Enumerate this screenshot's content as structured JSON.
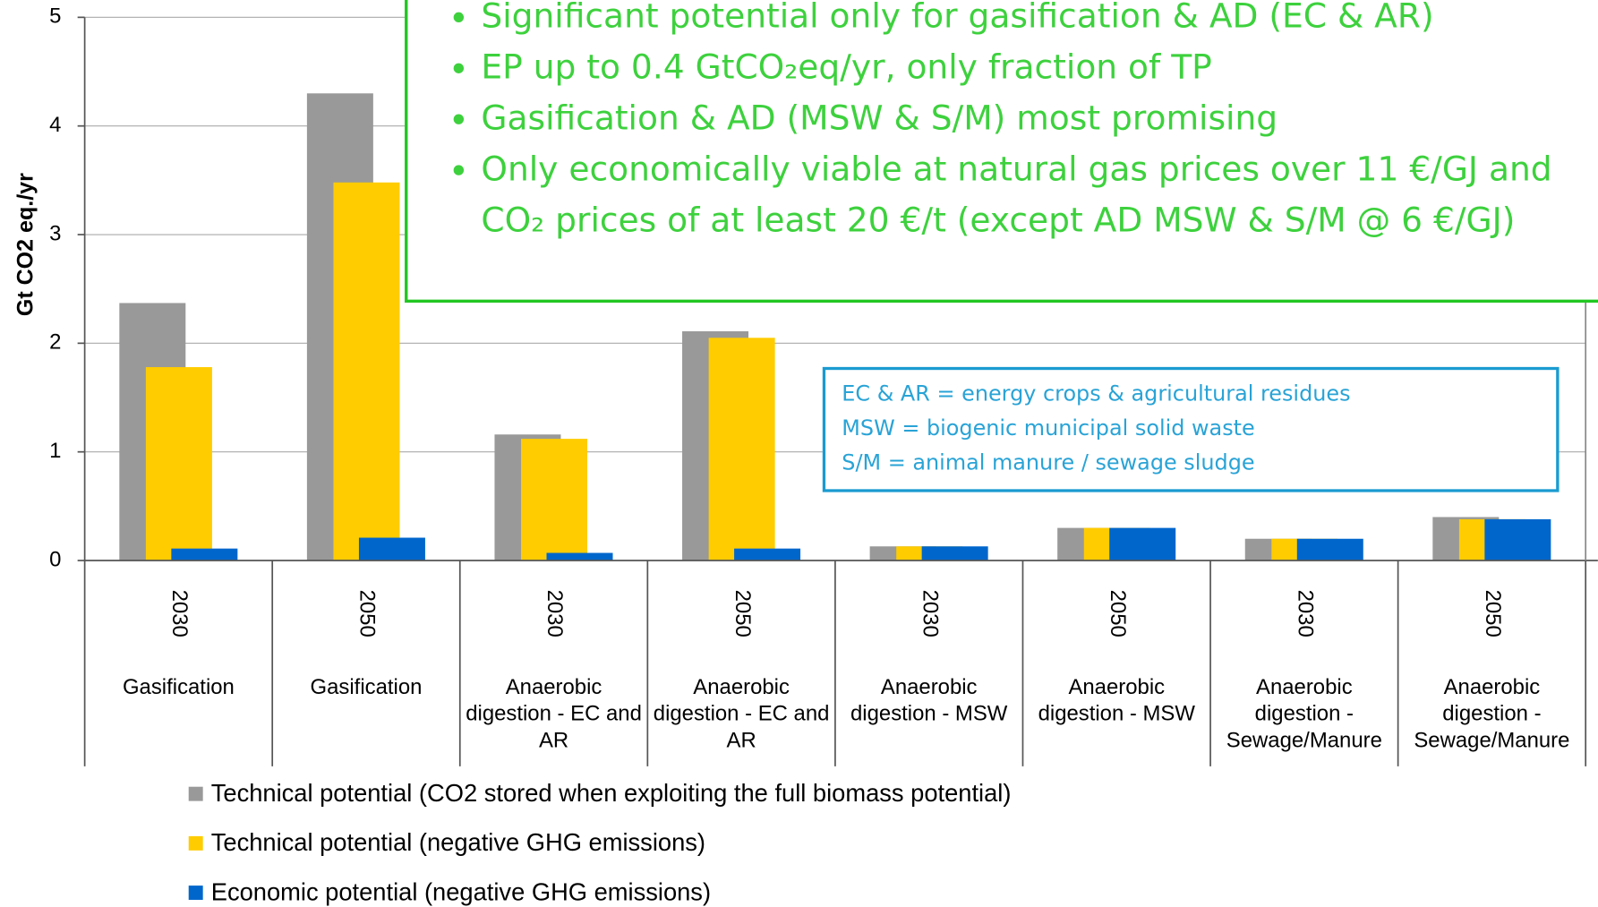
{
  "chart_data": {
    "type": "bar",
    "y_label": "Gt CO2 eq./yr",
    "categories": [
      "2030",
      "2050",
      "2030",
      "2050",
      "2030",
      "2050",
      "2030",
      "2050"
    ],
    "groups": [
      "Gasification",
      "Gasification",
      "Anaerobic digestion - EC and AR",
      "Anaerobic digestion - EC and AR",
      "Anaerobic digestion - MSW",
      "Anaerobic digestion - MSW",
      "Anaerobic digestion - Sewage/Manure",
      "Anaerobic digestion - Sewage/Manure"
    ],
    "series": [
      {
        "name": "Technical potential (CO2 stored when exploiting the full biomass potential)",
        "color": "#999999",
        "values": [
          2.37,
          4.3,
          1.16,
          2.11,
          0.13,
          0.3,
          0.2,
          0.4
        ]
      },
      {
        "name": "Technical potential (negative GHG emissions)",
        "color": "#ffcc00",
        "values": [
          1.78,
          3.48,
          1.12,
          2.05,
          0.13,
          0.3,
          0.2,
          0.38
        ]
      },
      {
        "name": "Economic potential (negative GHG emissions)",
        "color": "#0066cc",
        "values": [
          0.11,
          0.21,
          0.07,
          0.11,
          0.13,
          0.3,
          0.2,
          0.38
        ]
      }
    ],
    "ylim": [
      0,
      5
    ],
    "yticks": [
      0,
      1,
      2,
      3,
      4,
      5
    ],
    "grid": true
  },
  "callout": {
    "bullets": [
      "Significant potential only for gasification & AD (EC & AR)",
      "EP up to 0.4 GtCO₂eq/yr, only fraction of TP",
      "Gasification & AD (MSW & S/M) most promising",
      "Only economically viable at natural gas prices over 11 €/GJ and CO₂ prices of at least 20 €/t  (except  AD MSW & S/M @ 6 €/GJ)"
    ]
  },
  "definitions": [
    "EC & AR = energy crops & agricultural residues",
    "MSW = biogenic municipal solid waste",
    "S/M = animal manure / sewage sludge"
  ]
}
